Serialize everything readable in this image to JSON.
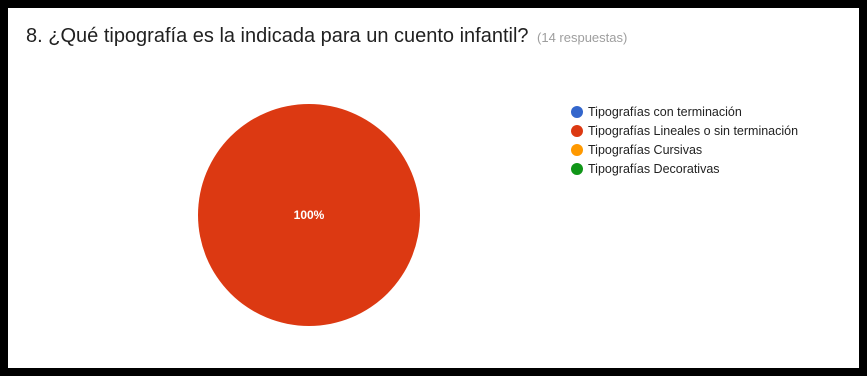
{
  "question": {
    "title": "8. ¿Qué tipografía es la indicada para un cuento infantil?",
    "response_count": "(14 respuestas)"
  },
  "chart_data": {
    "type": "pie",
    "categories": [
      "Tipografías con terminación",
      "Tipografías Lineales o sin terminación",
      "Tipografías Cursivas",
      "Tipografías Decorativas"
    ],
    "values": [
      0,
      100,
      0,
      0
    ],
    "colors": [
      "#3366cc",
      "#dc3912",
      "#ff9900",
      "#109618"
    ],
    "slice_labels": [
      "",
      "100%",
      "",
      ""
    ],
    "legend_position": "right"
  }
}
